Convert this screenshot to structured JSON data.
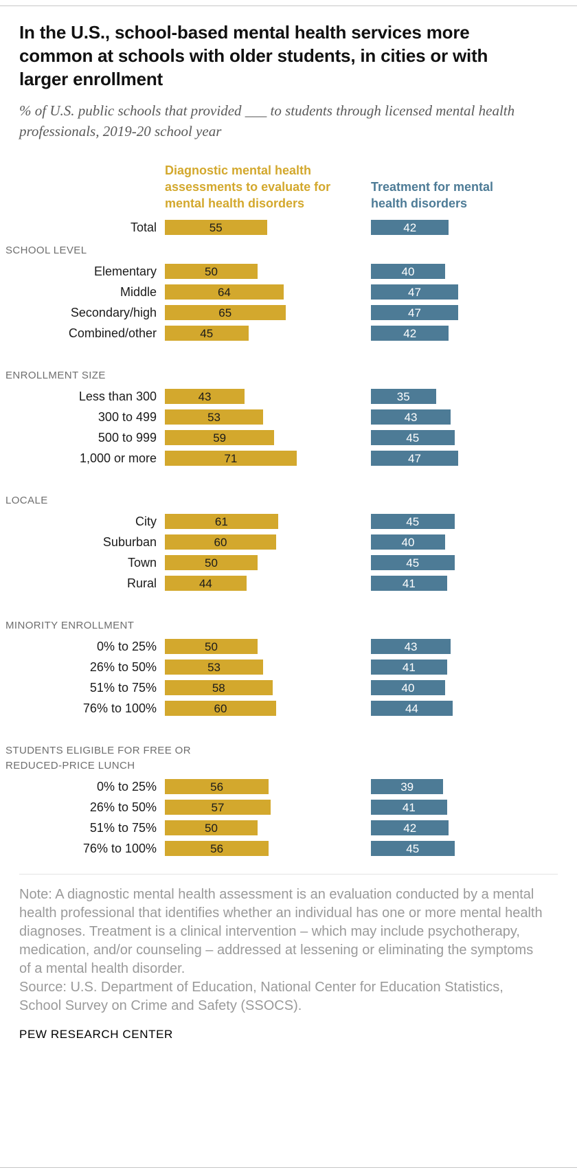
{
  "header": {
    "title": "In the U.S., school-based mental health services more common at schools with older students, in cities or with larger enrollment",
    "subtitle": "% of U.S. public schools that provided ___ to students through licensed mental health professionals, 2019-20 school year"
  },
  "chart_data": {
    "type": "bar",
    "orientation": "horizontal",
    "unit": "percent",
    "xlim": [
      0,
      100
    ],
    "grid": false,
    "legend_position": "top",
    "series": [
      {
        "name": "Diagnostic mental health assessments to evaluate for mental health disorders",
        "color": "#d3a82d",
        "value_label_color": "#1a1a1a"
      },
      {
        "name": "Treatment for mental health disorders",
        "color": "#4d7b96",
        "value_label_color": "#ffffff"
      }
    ],
    "groups": [
      {
        "heading": "",
        "rows": [
          {
            "label": "Total",
            "values": [
              55,
              42
            ]
          }
        ]
      },
      {
        "heading": "SCHOOL LEVEL",
        "rows": [
          {
            "label": "Elementary",
            "values": [
              50,
              40
            ]
          },
          {
            "label": "Middle",
            "values": [
              64,
              47
            ]
          },
          {
            "label": "Secondary/high",
            "values": [
              65,
              47
            ]
          },
          {
            "label": "Combined/other",
            "values": [
              45,
              42
            ]
          }
        ]
      },
      {
        "heading": "ENROLLMENT SIZE",
        "rows": [
          {
            "label": "Less than 300",
            "values": [
              43,
              35
            ]
          },
          {
            "label": "300 to 499",
            "values": [
              53,
              43
            ]
          },
          {
            "label": "500 to 999",
            "values": [
              59,
              45
            ]
          },
          {
            "label": "1,000 or more",
            "values": [
              71,
              47
            ]
          }
        ]
      },
      {
        "heading": "LOCALE",
        "rows": [
          {
            "label": "City",
            "values": [
              61,
              45
            ]
          },
          {
            "label": "Suburban",
            "values": [
              60,
              40
            ]
          },
          {
            "label": "Town",
            "values": [
              50,
              45
            ]
          },
          {
            "label": "Rural",
            "values": [
              44,
              41
            ]
          }
        ]
      },
      {
        "heading": "MINORITY ENROLLMENT",
        "rows": [
          {
            "label": "0% to 25%",
            "values": [
              50,
              43
            ]
          },
          {
            "label": "26% to 50%",
            "values": [
              53,
              41
            ]
          },
          {
            "label": "51% to 75%",
            "values": [
              58,
              40
            ]
          },
          {
            "label": "76% to 100%",
            "values": [
              60,
              44
            ]
          }
        ]
      },
      {
        "heading": "STUDENTS ELIGIBLE FOR FREE OR REDUCED-PRICE LUNCH",
        "rows": [
          {
            "label": "0% to 25%",
            "values": [
              56,
              39
            ]
          },
          {
            "label": "26% to 50%",
            "values": [
              57,
              41
            ]
          },
          {
            "label": "51% to 75%",
            "values": [
              50,
              42
            ]
          },
          {
            "label": "76% to 100%",
            "values": [
              56,
              45
            ]
          }
        ]
      }
    ]
  },
  "footer": {
    "note": "Note: A diagnostic mental health assessment is an evaluation conducted by a mental health professional that identifies whether an individual has one or more mental health diagnoses. Treatment is a clinical intervention – which may include psychotherapy, medication, and/or counseling – addressed at lessening or eliminating the symptoms of a mental health disorder.",
    "source": "Source: U.S. Department of Education, National Center for Education Statistics, School Survey on Crime and Safety (SSOCS).",
    "brand": "PEW RESEARCH CENTER"
  }
}
